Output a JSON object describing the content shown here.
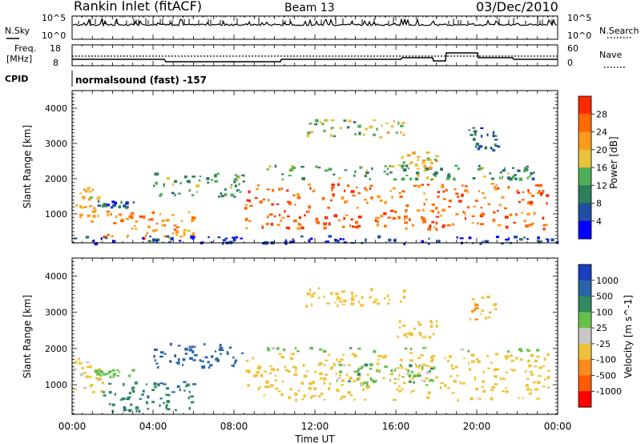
{
  "header": {
    "station": "Rankin Inlet (fitACF)",
    "beam": "Beam 13",
    "date": "03/Dec/2010"
  },
  "noise_panel": {
    "left_label": "N.Sky",
    "right_label": "N.Search",
    "left_ticks": [
      "10^5",
      "10^0"
    ],
    "right_ticks": [
      "10^5",
      "10^0"
    ]
  },
  "freq_panel": {
    "left_label_1": "Freq.",
    "left_label_2": "[MHz]",
    "right_label": "Nave",
    "left_ticks": [
      "18",
      "8"
    ],
    "right_ticks": [
      "60",
      "0"
    ]
  },
  "cpid": {
    "label": "CPID",
    "text": "normalsound (fast) -157"
  },
  "colors": {
    "power_scale": [
      "#0000ff",
      "#1f4fa3",
      "#2e7d5b",
      "#4fae57",
      "#e8c33a",
      "#ff9a1a",
      "#ff6a00",
      "#ff2a00"
    ],
    "velocity_scale": [
      "#1a3fbf",
      "#2a63a8",
      "#2f8a5e",
      "#67c04a",
      "#c8c8c8",
      "#f0c23a",
      "#ff8a1a",
      "#ff5a00",
      "#ff0000"
    ]
  },
  "chart_data": [
    {
      "type": "heatmap",
      "panel": "power",
      "xlabel": "Time UT",
      "ylabel": "Slant Range [km]",
      "colorbar_label": "Power [dB]",
      "colorbar_ticks": [
        "28",
        "24",
        "20",
        "16",
        "12",
        "8",
        "4"
      ],
      "x_ticks": [
        "00:00",
        "04:00",
        "08:00",
        "12:00",
        "16:00",
        "20:00",
        "00:00"
      ],
      "y_ticks": [
        "1000",
        "2000",
        "3000",
        "4000"
      ],
      "xlim_hours": [
        0,
        24
      ],
      "ylim_km": [
        180,
        4500
      ],
      "legend_placement": "right",
      "scatter_regions": [
        {
          "t_start": 0.0,
          "t_end": 1.5,
          "r_low": 800,
          "r_high": 1800,
          "level": 20
        },
        {
          "t_start": 1.5,
          "t_end": 6.0,
          "r_low": 300,
          "r_high": 1100,
          "level": 24
        },
        {
          "t_start": 1.2,
          "t_end": 3.0,
          "r_low": 1200,
          "r_high": 1400,
          "level": 8
        },
        {
          "t_start": 4.0,
          "t_end": 8.5,
          "r_low": 1500,
          "r_high": 2200,
          "level": 12
        },
        {
          "t_start": 8.5,
          "t_end": 23.5,
          "r_low": 600,
          "r_high": 1900,
          "level": 26
        },
        {
          "t_start": 9.5,
          "t_end": 23.0,
          "r_low": 2000,
          "r_high": 2400,
          "level": 12
        },
        {
          "t_start": 11.5,
          "t_end": 16.5,
          "r_low": 3200,
          "r_high": 3700,
          "level": 16
        },
        {
          "t_start": 16.0,
          "t_end": 18.0,
          "r_low": 2300,
          "r_high": 2800,
          "level": 20
        },
        {
          "t_start": 19.5,
          "t_end": 21.0,
          "r_low": 2800,
          "r_high": 3500,
          "level": 8
        },
        {
          "t_start": 0.0,
          "t_end": 24.0,
          "r_low": 180,
          "r_high": 400,
          "level": 4
        }
      ]
    },
    {
      "type": "heatmap",
      "panel": "velocity",
      "xlabel": "Time UT",
      "ylabel": "Slant Range [km]",
      "colorbar_label": "Velocity [m s^-1]",
      "colorbar_ticks": [
        "1000",
        "500",
        "100",
        "25",
        "-25",
        "-100",
        "-500",
        "-1000"
      ],
      "x_ticks": [
        "00:00",
        "04:00",
        "08:00",
        "12:00",
        "16:00",
        "20:00",
        "00:00"
      ],
      "y_ticks": [
        "1000",
        "2000",
        "3000",
        "4000"
      ],
      "xlim_hours": [
        0,
        24
      ],
      "ylim_km": [
        180,
        4500
      ],
      "legend_placement": "right",
      "scatter_regions": [
        {
          "t_start": 0.0,
          "t_end": 1.5,
          "r_low": 800,
          "r_high": 1800,
          "velocity": -150
        },
        {
          "t_start": 1.0,
          "t_end": 3.0,
          "r_low": 1250,
          "r_high": 1450,
          "velocity": 0
        },
        {
          "t_start": 1.5,
          "t_end": 6.0,
          "r_low": 300,
          "r_high": 1100,
          "velocity": 80
        },
        {
          "t_start": 4.0,
          "t_end": 8.5,
          "r_low": 1500,
          "r_high": 2200,
          "velocity": 300
        },
        {
          "t_start": 8.5,
          "t_end": 23.5,
          "r_low": 600,
          "r_high": 1900,
          "velocity": -300
        },
        {
          "t_start": 13.0,
          "t_end": 18.0,
          "r_low": 1000,
          "r_high": 1600,
          "velocity": 0
        },
        {
          "t_start": 9.5,
          "t_end": 23.0,
          "r_low": 1950,
          "r_high": 2050,
          "velocity": 0
        },
        {
          "t_start": 11.5,
          "t_end": 16.5,
          "r_low": 3200,
          "r_high": 3700,
          "velocity": -300
        },
        {
          "t_start": 16.0,
          "t_end": 18.0,
          "r_low": 2300,
          "r_high": 2800,
          "velocity": -200
        },
        {
          "t_start": 19.5,
          "t_end": 21.0,
          "r_low": 2800,
          "r_high": 3500,
          "velocity": -400
        }
      ]
    }
  ]
}
